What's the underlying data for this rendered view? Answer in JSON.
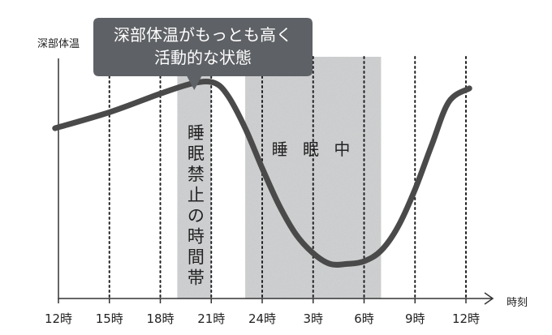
{
  "chart_data": {
    "type": "line",
    "title": "",
    "ylabel": "深部体温",
    "xlabel": "時刻",
    "x_ticks": [
      "12時",
      "15時",
      "18時",
      "21時",
      "24時",
      "3時",
      "6時",
      "9時",
      "12時"
    ],
    "x_hours": [
      0,
      3,
      6,
      9,
      12,
      15,
      18,
      21,
      24
    ],
    "xlim": [
      0,
      24
    ],
    "ylim": [
      0,
      100
    ],
    "grid": "vertical dotted",
    "series": [
      {
        "name": "",
        "x": [
          -0.2,
          3,
          6,
          8,
          9.2,
          10,
          11,
          12,
          13,
          14,
          15,
          16,
          17,
          18,
          19,
          20,
          21,
          22,
          23,
          24.2
        ],
        "y": [
          64,
          70,
          77,
          81,
          81,
          76,
          64,
          49,
          35,
          24,
          17,
          13,
          13,
          14,
          18,
          27,
          41,
          58,
          74,
          79
        ]
      }
    ],
    "bands": [
      {
        "label": "睡眠禁止の時間帯",
        "x_start": 7,
        "x_end": 9
      },
      {
        "label": "睡 眠 中",
        "x_start": 11,
        "x_end": 19
      }
    ],
    "callout": {
      "lines": [
        "深部体温がもっとも高く",
        "活動的な状態"
      ],
      "x": 8
    }
  },
  "colors": {
    "curve": "#4a4a4a",
    "band": "#cfd0d1",
    "callout_bg": "#5e6165",
    "axis": "#333333",
    "grid": "#222222"
  }
}
